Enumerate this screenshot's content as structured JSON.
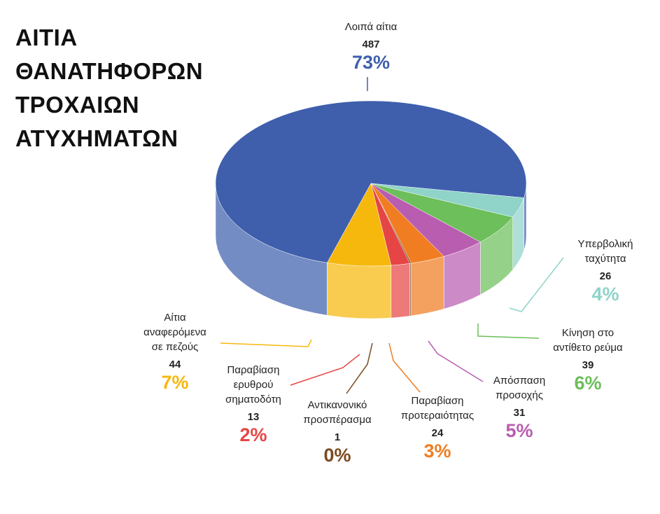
{
  "chart_data": {
    "type": "pie",
    "title": "ΑΙΤΙΑ\nΘΑΝΑΤΗΦΟΡΩΝ\nΤΡΟΧΑΙΩΝ\nΑΤΥΧΗΜΑΤΩΝ",
    "categories": [
      "Λοιπά αίτια",
      "Υπερβολική\nταχύτητα",
      "Κίνηση στο\nαντίθετο ρεύμα",
      "Απόσπαση\nπροσοχής",
      "Παραβίαση\nπροτεραιότητας",
      "Αντικανονικό\nπροσπέρασμα",
      "Παραβίαση\nερυθρού\nσηματοδότη",
      "Αίτια\nαναφερόμενα\nσε πεζούς"
    ],
    "values": [
      487,
      26,
      39,
      31,
      24,
      1,
      13,
      44
    ],
    "percent_labels": [
      "73%",
      "4%",
      "6%",
      "5%",
      "3%",
      "0%",
      "2%",
      "7%"
    ],
    "colors": [
      "#3f5fad",
      "#8fd3c9",
      "#6cbf5a",
      "#b95db0",
      "#f07d22",
      "#7a4a1e",
      "#e64545",
      "#f6b80d"
    ]
  }
}
